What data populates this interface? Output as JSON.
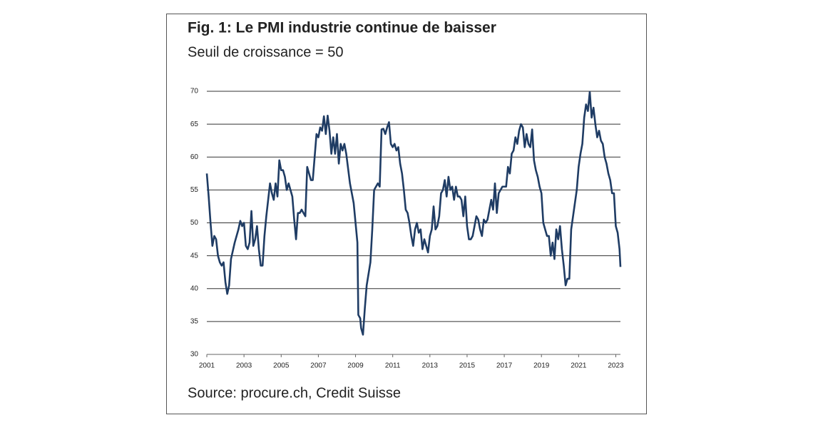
{
  "chart_data": {
    "type": "line",
    "title": "Fig. 1: Le PMI industrie continue de baisser",
    "subtitle": "Seuil de croissance = 50",
    "source": "Source: procure.ch, Credit Suisse",
    "x": [
      2001.0,
      2001.1,
      2001.2,
      2001.3,
      2001.4,
      2001.5,
      2001.6,
      2001.7,
      2001.8,
      2001.9,
      2002.0,
      2002.1,
      2002.2,
      2002.3,
      2002.5,
      2002.7,
      2002.8,
      2002.9,
      2003.0,
      2003.1,
      2003.2,
      2003.3,
      2003.4,
      2003.5,
      2003.6,
      2003.7,
      2003.8,
      2003.9,
      2004.0,
      2004.1,
      2004.2,
      2004.3,
      2004.4,
      2004.5,
      2004.6,
      2004.7,
      2004.8,
      2004.9,
      2005.0,
      2005.1,
      2005.2,
      2005.3,
      2005.4,
      2005.5,
      2005.6,
      2005.7,
      2005.8,
      2005.9,
      2006.0,
      2006.1,
      2006.3,
      2006.4,
      2006.5,
      2006.6,
      2006.7,
      2006.8,
      2006.9,
      2007.0,
      2007.1,
      2007.2,
      2007.3,
      2007.4,
      2007.5,
      2007.6,
      2007.7,
      2007.8,
      2007.9,
      2008.0,
      2008.1,
      2008.2,
      2008.3,
      2008.4,
      2008.5,
      2008.7,
      2008.9,
      2009.0,
      2009.1,
      2009.15,
      2009.25,
      2009.3,
      2009.4,
      2009.5,
      2009.6,
      2009.8,
      2009.9,
      2010.0,
      2010.1,
      2010.2,
      2010.3,
      2010.4,
      2010.5,
      2010.6,
      2010.7,
      2010.8,
      2010.9,
      2011.0,
      2011.1,
      2011.2,
      2011.3,
      2011.4,
      2011.5,
      2011.6,
      2011.7,
      2011.8,
      2011.9,
      2012.0,
      2012.1,
      2012.2,
      2012.3,
      2012.4,
      2012.5,
      2012.6,
      2012.7,
      2012.8,
      2012.9,
      2013.0,
      2013.1,
      2013.2,
      2013.3,
      2013.4,
      2013.5,
      2013.6,
      2013.7,
      2013.8,
      2013.9,
      2014.0,
      2014.1,
      2014.2,
      2014.3,
      2014.4,
      2014.5,
      2014.6,
      2014.7,
      2014.8,
      2014.9,
      2015.0,
      2015.1,
      2015.2,
      2015.3,
      2015.4,
      2015.5,
      2015.6,
      2015.7,
      2015.8,
      2015.9,
      2016.0,
      2016.1,
      2016.2,
      2016.3,
      2016.4,
      2016.5,
      2016.6,
      2016.7,
      2016.8,
      2016.9,
      2017.0,
      2017.1,
      2017.2,
      2017.3,
      2017.4,
      2017.5,
      2017.6,
      2017.7,
      2017.8,
      2017.9,
      2018.0,
      2018.1,
      2018.2,
      2018.3,
      2018.4,
      2018.5,
      2018.6,
      2018.7,
      2018.8,
      2018.9,
      2019.0,
      2019.1,
      2019.2,
      2019.3,
      2019.4,
      2019.5,
      2019.6,
      2019.7,
      2019.8,
      2019.9,
      2020.0,
      2020.1,
      2020.2,
      2020.3,
      2020.4,
      2020.5,
      2020.6,
      2020.7,
      2020.8,
      2020.9,
      2021.0,
      2021.1,
      2021.2,
      2021.3,
      2021.4,
      2021.5,
      2021.6,
      2021.7,
      2021.8,
      2021.9,
      2022.0,
      2022.1,
      2022.2,
      2022.3,
      2022.4,
      2022.5,
      2022.6,
      2022.7,
      2022.8,
      2022.9,
      2023.0,
      2023.1,
      2023.2,
      2023.25
    ],
    "series": [
      {
        "color": "#1f3c64",
        "values": [
          57.5,
          54,
          50,
          46.5,
          48,
          47.5,
          45,
          44,
          43.5,
          44,
          41,
          39.2,
          40.5,
          44.5,
          47,
          49,
          50.3,
          49.5,
          50,
          46.5,
          46,
          47,
          51.8,
          46.5,
          47.5,
          49.5,
          46,
          43.5,
          43.5,
          48,
          51,
          53.5,
          56,
          54.5,
          53.5,
          56,
          54,
          59.5,
          58,
          58,
          57,
          55,
          56,
          55,
          54,
          50.5,
          47.5,
          51.5,
          51.5,
          52,
          51,
          58.5,
          57.5,
          56.5,
          56.5,
          60,
          63.5,
          63,
          64.5,
          64,
          66.2,
          63.5,
          66.3,
          64,
          60.5,
          63,
          60.5,
          63.5,
          59,
          62,
          61,
          62,
          60.5,
          56,
          53,
          50,
          47,
          36,
          35.5,
          34,
          33,
          37,
          40.5,
          44,
          49,
          55,
          55.5,
          56,
          55.5,
          64.2,
          64.3,
          63.5,
          64.5,
          65.3,
          62,
          61.5,
          62,
          61,
          61.5,
          59,
          57.5,
          55,
          52,
          51.5,
          50,
          48,
          46.5,
          49,
          50,
          48.5,
          49,
          46,
          47.5,
          46.5,
          45.5,
          48,
          49,
          52.5,
          49,
          49.5,
          51,
          54.5,
          55,
          56.5,
          54,
          57,
          55,
          55.5,
          53.5,
          55.5,
          54,
          54,
          53.5,
          51,
          54,
          49.5,
          47.5,
          47.5,
          48,
          49.5,
          51,
          50.5,
          49,
          48,
          50.5,
          50,
          50.5,
          52,
          53.5,
          52,
          56,
          51.5,
          54.5,
          55,
          55.5,
          55.5,
          55.5,
          58.5,
          57.5,
          60.5,
          61,
          63,
          62,
          64,
          65,
          64.5,
          61.5,
          63.5,
          62,
          61.5,
          64.2,
          59.5,
          58,
          57,
          55.5,
          54.5,
          50,
          49,
          48,
          48,
          45,
          47,
          44.5,
          49,
          47.5,
          49.5,
          46,
          43.5,
          40.5,
          41.5,
          41.5,
          49,
          51,
          53,
          55,
          58.5,
          60.5,
          62,
          66,
          68,
          67,
          69.9,
          66,
          67.5,
          65,
          63,
          64,
          62.5,
          62,
          60,
          59,
          57.5,
          56.5,
          54.5,
          54.5,
          49.5,
          48.5,
          46,
          43.3
        ]
      }
    ],
    "xlim": [
      2001,
      2023.25
    ],
    "xticks": [
      2001,
      2003,
      2005,
      2007,
      2009,
      2011,
      2013,
      2015,
      2017,
      2019,
      2021,
      2023
    ],
    "ylim": [
      30,
      70
    ],
    "yticks": [
      30,
      35,
      40,
      45,
      50,
      55,
      60,
      65,
      70
    ],
    "grid": true
  }
}
